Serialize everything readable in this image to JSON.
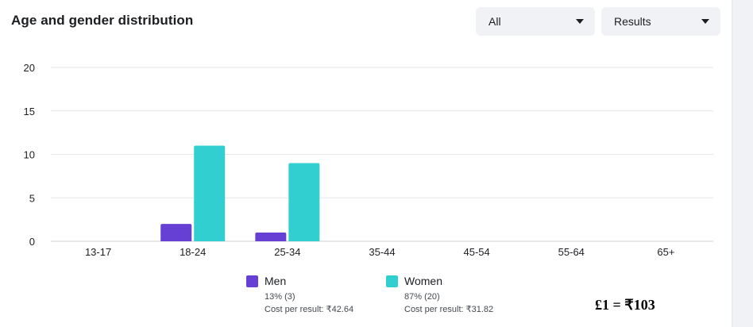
{
  "header": {
    "title": "Age and gender distribution",
    "filter_audience": "All",
    "filter_metric": "Results"
  },
  "chart_data": {
    "type": "bar",
    "categories": [
      "13-17",
      "18-24",
      "25-34",
      "35-44",
      "45-54",
      "55-64",
      "65+"
    ],
    "series": [
      {
        "name": "Men",
        "values": [
          0,
          2,
          1,
          0,
          0,
          0,
          0
        ],
        "color": "#6640d4"
      },
      {
        "name": "Women",
        "values": [
          0,
          11,
          9,
          0,
          0,
          0,
          0
        ],
        "color": "#31cfcf"
      }
    ],
    "yticks": [
      0,
      5,
      10,
      15,
      20
    ],
    "ylim": [
      0,
      20
    ],
    "grid": true,
    "legend_position": "bottom"
  },
  "legend": {
    "men": {
      "label": "Men",
      "share": "13% (3)",
      "cost": "Cost per result: ₹42.64",
      "color": "#6640d4"
    },
    "women": {
      "label": "Women",
      "share": "87% (20)",
      "cost": "Cost per result: ₹31.82",
      "color": "#31cfcf"
    }
  },
  "annotation": "£1 = ₹103"
}
